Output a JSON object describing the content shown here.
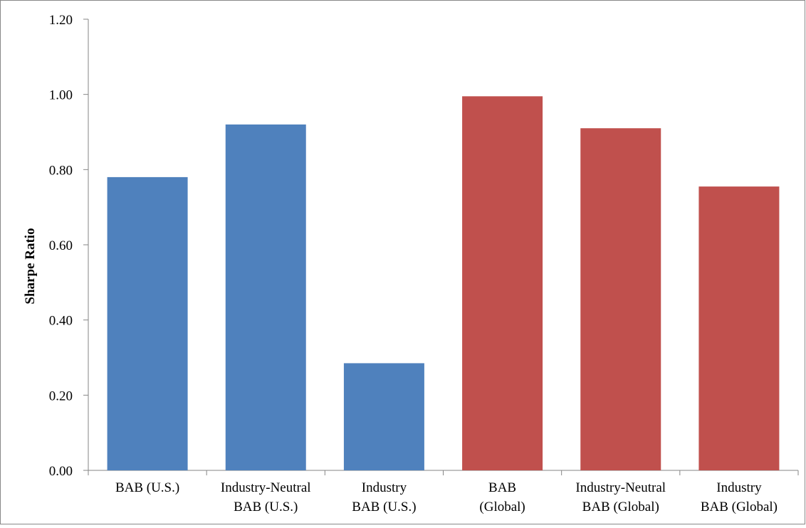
{
  "chart_data": {
    "type": "bar",
    "title": "",
    "xlabel": "",
    "ylabel": "Sharpe Ratio",
    "ylim": [
      0,
      1.2
    ],
    "yticks": [
      "0.00",
      "0.20",
      "0.40",
      "0.60",
      "0.80",
      "1.00",
      "1.20"
    ],
    "ytick_values": [
      0,
      0.2,
      0.4,
      0.6,
      0.8,
      1.0,
      1.2
    ],
    "grid": false,
    "legend": "none",
    "categories": [
      [
        "BAB (U.S.)"
      ],
      [
        "Industry-Neutral",
        "BAB (U.S.)"
      ],
      [
        "Industry",
        "BAB (U.S.)"
      ],
      [
        "BAB",
        "(Global)"
      ],
      [
        "Industry-Neutral",
        "BAB (Global)"
      ],
      [
        "Industry",
        "BAB (Global)"
      ]
    ],
    "values": [
      0.78,
      0.92,
      0.285,
      0.995,
      0.91,
      0.755
    ],
    "bar_colors": [
      "#4F81BD",
      "#4F81BD",
      "#4F81BD",
      "#C0504D",
      "#C0504D",
      "#C0504D"
    ]
  }
}
